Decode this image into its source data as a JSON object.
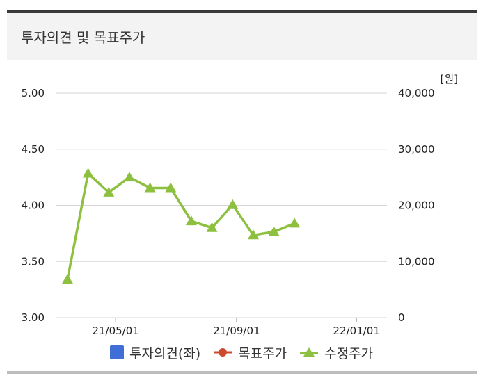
{
  "header": {
    "title": "투자의견 및 목표주가"
  },
  "chart_data": {
    "type": "line",
    "unit_label": "[원]",
    "left_axis": {
      "ticks": [
        "5.00",
        "4.50",
        "4.00",
        "3.50",
        "3.00"
      ],
      "ylim": [
        3.0,
        5.0
      ]
    },
    "right_axis": {
      "ticks": [
        "40,000",
        "30,000",
        "20,000",
        "10,000",
        "0"
      ],
      "ylim": [
        0,
        40000
      ]
    },
    "x_ticks": [
      {
        "label": "21/05/01",
        "date": "2021-05-01"
      },
      {
        "label": "21/09/01",
        "date": "2021-09-01"
      },
      {
        "label": "22/01/01",
        "date": "2022-01-01"
      }
    ],
    "xlim": [
      "2021-03-01",
      "2022-02-01"
    ],
    "grid": true,
    "legend_position": "bottom",
    "series": [
      {
        "name": "투자의견(좌)",
        "color": "#3f6fd6",
        "marker": "square",
        "axis": "left",
        "points": []
      },
      {
        "name": "목표주가",
        "color": "#cc4a2c",
        "marker": "circle",
        "axis": "right",
        "points": []
      },
      {
        "name": "수정주가",
        "color": "#8dc03f",
        "marker": "triangle",
        "axis": "right",
        "points": [
          {
            "x": "2021-03-13",
            "y": 6800
          },
          {
            "x": "2021-04-03",
            "y": 25700
          },
          {
            "x": "2021-04-24",
            "y": 22300
          },
          {
            "x": "2021-05-15",
            "y": 25000
          },
          {
            "x": "2021-06-05",
            "y": 23100
          },
          {
            "x": "2021-06-26",
            "y": 23100
          },
          {
            "x": "2021-07-17",
            "y": 17200
          },
          {
            "x": "2021-08-07",
            "y": 16000
          },
          {
            "x": "2021-08-28",
            "y": 20100
          },
          {
            "x": "2021-09-18",
            "y": 14700
          },
          {
            "x": "2021-10-09",
            "y": 15300
          },
          {
            "x": "2021-10-30",
            "y": 16800
          }
        ]
      }
    ]
  }
}
